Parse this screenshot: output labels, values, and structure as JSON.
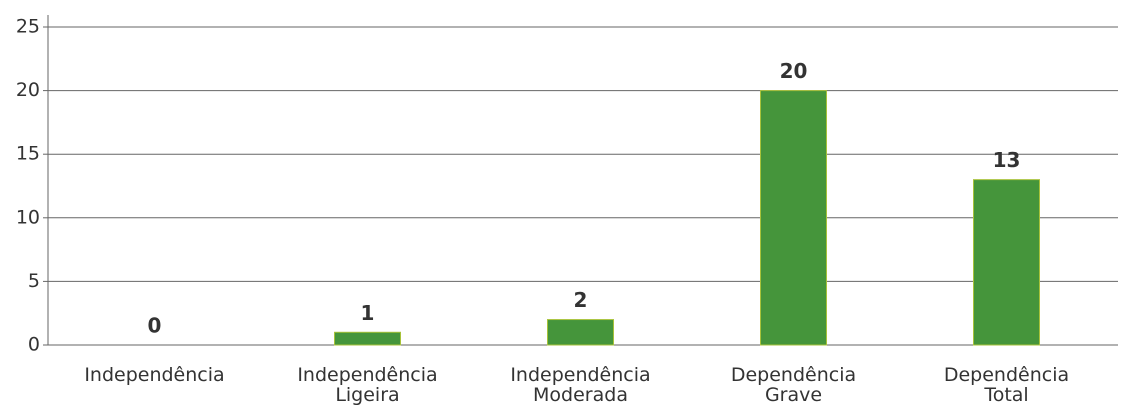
{
  "chart_data": {
    "type": "bar",
    "categories": [
      [
        "Independência"
      ],
      [
        "Independência",
        "Ligeira"
      ],
      [
        "Independência",
        "Moderada"
      ],
      [
        "Dependência",
        "Grave"
      ],
      [
        "Dependência",
        "Total"
      ]
    ],
    "values": [
      0,
      1,
      2,
      20,
      13
    ],
    "color": "#45953b",
    "ylim": [
      0,
      25
    ],
    "yticks": [
      0,
      5,
      10,
      15,
      20,
      25
    ],
    "grid": true
  }
}
